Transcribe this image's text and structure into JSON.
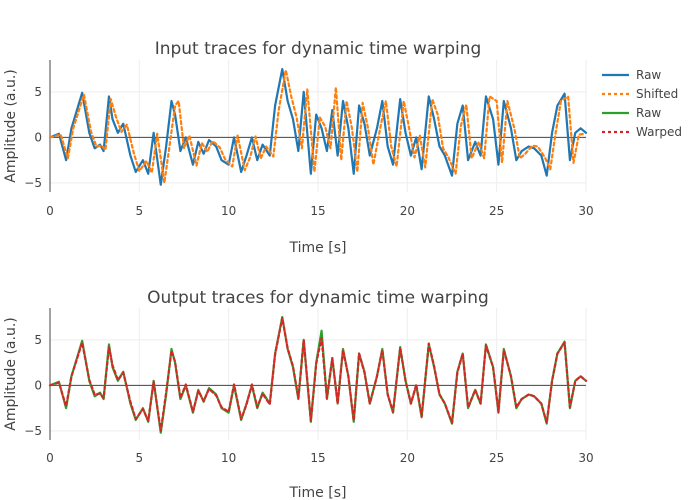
{
  "chart_data": [
    {
      "type": "line",
      "title": "Input traces for dynamic time warping",
      "xlabel": "Time [s]",
      "ylabel": "Amplitude (a.u.)",
      "xlim": [
        0,
        30
      ],
      "ylim": [
        -6,
        8.5
      ],
      "xticks": [
        "0",
        "5",
        "10",
        "15",
        "20",
        "25",
        "30"
      ],
      "yticks": [
        "−5",
        "0",
        "5"
      ],
      "grid": true,
      "legend_position": "right",
      "series": [
        {
          "name": "Raw",
          "color": "#1f77b4",
          "dash": "solid",
          "x": [
            0.0,
            0.5,
            0.9,
            1.2,
            1.8,
            2.2,
            2.5,
            2.8,
            3.0,
            3.3,
            3.5,
            3.8,
            4.1,
            4.5,
            4.8,
            5.2,
            5.5,
            5.8,
            6.2,
            6.5,
            6.8,
            7.0,
            7.3,
            7.6,
            8.0,
            8.3,
            8.6,
            8.9,
            9.3,
            9.6,
            10.0,
            10.3,
            10.7,
            11.0,
            11.3,
            11.6,
            11.9,
            12.3,
            12.6,
            13.0,
            13.3,
            13.6,
            13.9,
            14.2,
            14.6,
            14.9,
            15.2,
            15.5,
            15.8,
            16.1,
            16.4,
            16.7,
            17.0,
            17.3,
            17.6,
            17.9,
            18.3,
            18.6,
            18.9,
            19.2,
            19.6,
            19.9,
            20.2,
            20.5,
            20.8,
            21.2,
            21.5,
            21.8,
            22.1,
            22.5,
            22.8,
            23.1,
            23.4,
            23.8,
            24.1,
            24.4,
            24.8,
            25.1,
            25.4,
            25.8,
            26.1,
            26.4,
            26.8,
            27.1,
            27.5,
            27.8,
            28.1,
            28.4,
            28.8,
            29.1,
            29.4,
            29.7,
            30.0
          ],
          "y": [
            0,
            0.4,
            -2.5,
            1.0,
            4.9,
            0.5,
            -1.2,
            -0.8,
            -1.5,
            4.5,
            2.0,
            0.5,
            1.5,
            -2.0,
            -3.8,
            -2.5,
            -4.0,
            0.5,
            -5.2,
            -1.0,
            4.0,
            2.5,
            -1.5,
            0.0,
            -3.0,
            -0.5,
            -1.8,
            -0.3,
            -1.0,
            -2.5,
            -3.0,
            0.0,
            -3.8,
            -2.0,
            0.0,
            -2.5,
            -0.8,
            -2.0,
            3.5,
            7.5,
            4.0,
            2.0,
            -1.5,
            5.0,
            -4.0,
            2.5,
            1.0,
            -1.5,
            3.0,
            -2.0,
            4.0,
            1.0,
            -4.0,
            3.5,
            1.5,
            -2.0,
            1.0,
            4.0,
            -1.0,
            -3.0,
            4.2,
            0.5,
            -2.0,
            0.0,
            -3.5,
            4.5,
            2.0,
            -1.0,
            -2.0,
            -4.2,
            1.5,
            3.5,
            -2.5,
            -0.5,
            -2.0,
            4.5,
            2.0,
            -3.0,
            4.0,
            1.0,
            -2.5,
            -1.5,
            -1.0,
            -1.2,
            -2.0,
            -4.2,
            0.5,
            3.5,
            4.8,
            -2.5,
            0.5,
            1.0,
            0.5
          ]
        },
        {
          "name": "Shifted",
          "color": "#ff7f0e",
          "dash": "dot",
          "x": [
            0.0,
            0.6,
            1.0,
            1.3,
            1.9,
            2.3,
            2.6,
            2.9,
            3.1,
            3.4,
            3.7,
            4.0,
            4.3,
            4.7,
            5.0,
            5.4,
            5.7,
            6.0,
            6.4,
            6.7,
            7.0,
            7.2,
            7.5,
            7.8,
            8.2,
            8.5,
            8.8,
            9.1,
            9.5,
            9.8,
            10.2,
            10.5,
            10.9,
            11.2,
            11.5,
            11.8,
            12.1,
            12.5,
            12.8,
            13.2,
            13.5,
            13.8,
            14.1,
            14.4,
            14.8,
            15.1,
            15.4,
            15.7,
            16.0,
            16.3,
            16.6,
            16.9,
            17.2,
            17.5,
            17.8,
            18.1,
            18.5,
            18.8,
            19.1,
            19.4,
            19.8,
            20.1,
            20.4,
            20.7,
            21.0,
            21.4,
            21.7,
            22.0,
            22.3,
            22.7,
            23.0,
            23.3,
            23.6,
            24.0,
            24.3,
            24.6,
            25.0,
            25.3,
            25.6,
            26.0,
            26.3,
            26.6,
            27.0,
            27.3,
            27.7,
            28.0,
            28.3,
            28.6,
            29.0,
            29.3,
            29.6,
            29.9
          ],
          "y": [
            0,
            0.3,
            -2.3,
            1.0,
            4.7,
            0.6,
            -1.0,
            -0.9,
            -1.4,
            4.2,
            2.2,
            0.6,
            1.4,
            -1.8,
            -3.7,
            -2.6,
            -3.9,
            0.4,
            -5.0,
            -0.8,
            3.5,
            4.0,
            -1.2,
            0.2,
            -3.1,
            -0.6,
            -1.6,
            -0.4,
            -1.1,
            -2.4,
            -3.2,
            0.2,
            -3.6,
            -2.2,
            0.1,
            -2.3,
            -1.0,
            -2.1,
            3.0,
            7.4,
            4.5,
            2.2,
            -1.2,
            5.3,
            -3.8,
            2.2,
            1.2,
            -1.2,
            5.5,
            -2.5,
            4.0,
            1.0,
            -3.8,
            3.8,
            1.0,
            -3.0,
            1.2,
            4.0,
            -1.0,
            -3.2,
            4.0,
            1.0,
            -2.2,
            0.2,
            -3.3,
            4.2,
            2.5,
            -1.2,
            -2.2,
            -4.0,
            1.3,
            3.6,
            -2.3,
            -0.5,
            -2.3,
            4.5,
            4.0,
            -2.8,
            4.0,
            0.9,
            -2.3,
            -1.8,
            -0.9,
            -1.0,
            -2.2,
            -3.5,
            0.5,
            4.0,
            4.5,
            -2.8,
            0.3,
            0.4
          ]
        }
      ]
    },
    {
      "type": "line",
      "title": "Output traces for dynamic time warping",
      "xlabel": "Time [s]",
      "ylabel": "Amplitude (a.u.)",
      "xlim": [
        0,
        30
      ],
      "ylim": [
        -6,
        8.5
      ],
      "xticks": [
        "0",
        "5",
        "10",
        "15",
        "20",
        "25",
        "30"
      ],
      "yticks": [
        "−5",
        "0",
        "5"
      ],
      "grid": true,
      "legend_position": "right",
      "series": [
        {
          "name": "Raw",
          "color": "#2ca02c",
          "dash": "solid",
          "x": [
            0.0,
            0.5,
            0.9,
            1.2,
            1.8,
            2.2,
            2.5,
            2.8,
            3.0,
            3.3,
            3.5,
            3.8,
            4.1,
            4.5,
            4.8,
            5.2,
            5.5,
            5.8,
            6.2,
            6.5,
            6.8,
            7.0,
            7.3,
            7.6,
            8.0,
            8.3,
            8.6,
            8.9,
            9.3,
            9.6,
            10.0,
            10.3,
            10.7,
            11.0,
            11.3,
            11.6,
            11.9,
            12.3,
            12.6,
            13.0,
            13.3,
            13.6,
            13.9,
            14.2,
            14.6,
            14.9,
            15.2,
            15.5,
            15.8,
            16.1,
            16.4,
            16.7,
            17.0,
            17.3,
            17.6,
            17.9,
            18.3,
            18.6,
            18.9,
            19.2,
            19.6,
            19.9,
            20.2,
            20.5,
            20.8,
            21.2,
            21.5,
            21.8,
            22.1,
            22.5,
            22.8,
            23.1,
            23.4,
            23.8,
            24.1,
            24.4,
            24.8,
            25.1,
            25.4,
            25.8,
            26.1,
            26.4,
            26.8,
            27.1,
            27.5,
            27.8,
            28.1,
            28.4,
            28.8,
            29.1,
            29.4,
            29.7,
            30.0
          ],
          "y": [
            0,
            0.4,
            -2.5,
            1.0,
            4.9,
            0.5,
            -1.2,
            -0.8,
            -1.5,
            4.5,
            2.0,
            0.5,
            1.5,
            -2.0,
            -3.8,
            -2.5,
            -4.0,
            0.5,
            -5.2,
            -1.0,
            4.0,
            2.5,
            -1.5,
            0.0,
            -3.0,
            -0.5,
            -1.8,
            -0.3,
            -1.0,
            -2.5,
            -3.0,
            0.0,
            -3.8,
            -2.0,
            0.0,
            -2.5,
            -0.8,
            -2.0,
            3.5,
            7.5,
            4.0,
            2.0,
            -1.5,
            5.0,
            -4.0,
            2.5,
            6.0,
            -1.5,
            3.0,
            -2.0,
            4.0,
            1.0,
            -4.0,
            3.5,
            1.5,
            -2.0,
            1.0,
            4.0,
            -1.0,
            -3.0,
            4.2,
            0.5,
            -2.0,
            0.0,
            -3.5,
            4.5,
            2.0,
            -1.0,
            -2.0,
            -4.2,
            1.5,
            3.5,
            -2.5,
            -0.5,
            -2.0,
            4.5,
            2.0,
            -3.0,
            4.0,
            1.0,
            -2.5,
            -1.5,
            -1.0,
            -1.2,
            -2.0,
            -4.2,
            0.5,
            3.5,
            4.8,
            -2.5,
            0.5,
            1.0,
            0.5
          ]
        },
        {
          "name": "Warped",
          "color": "#d62728",
          "dash": "dot",
          "x": [
            0.0,
            0.5,
            0.9,
            1.2,
            1.8,
            2.2,
            2.5,
            2.8,
            3.0,
            3.3,
            3.5,
            3.8,
            4.1,
            4.5,
            4.8,
            5.2,
            5.5,
            5.8,
            6.2,
            6.5,
            6.8,
            7.0,
            7.3,
            7.6,
            8.0,
            8.3,
            8.6,
            8.9,
            9.3,
            9.6,
            10.0,
            10.3,
            10.7,
            11.0,
            11.3,
            11.6,
            11.9,
            12.3,
            12.6,
            13.0,
            13.3,
            13.6,
            13.9,
            14.2,
            14.6,
            14.9,
            15.2,
            15.5,
            15.8,
            16.1,
            16.4,
            16.7,
            17.0,
            17.3,
            17.6,
            17.9,
            18.3,
            18.6,
            18.9,
            19.2,
            19.6,
            19.9,
            20.2,
            20.5,
            20.8,
            21.2,
            21.5,
            21.8,
            22.1,
            22.5,
            22.8,
            23.1,
            23.4,
            23.8,
            24.1,
            24.4,
            24.8,
            25.1,
            25.4,
            25.8,
            26.1,
            26.4,
            26.8,
            27.1,
            27.5,
            27.8,
            28.1,
            28.4,
            28.8,
            29.1,
            29.4,
            29.7,
            30.0
          ],
          "y": [
            0,
            0.3,
            -2.3,
            1.0,
            4.7,
            0.6,
            -1.0,
            -0.9,
            -1.4,
            4.2,
            2.2,
            0.6,
            1.4,
            -1.8,
            -3.7,
            -2.6,
            -3.9,
            0.4,
            -5.0,
            -0.8,
            3.8,
            2.6,
            -1.4,
            0.1,
            -2.9,
            -0.6,
            -1.7,
            -0.4,
            -1.1,
            -2.4,
            -2.9,
            0.1,
            -3.7,
            -2.1,
            0.1,
            -2.4,
            -0.9,
            -2.1,
            3.4,
            7.4,
            4.1,
            2.1,
            -1.4,
            5.0,
            -3.9,
            2.4,
            5.2,
            -1.4,
            3.0,
            -2.0,
            3.9,
            1.0,
            -3.9,
            3.5,
            1.4,
            -2.0,
            1.0,
            3.9,
            -1.0,
            -2.9,
            4.1,
            0.5,
            -2.0,
            0.1,
            -3.4,
            4.6,
            2.1,
            -1.0,
            -2.0,
            -4.1,
            1.4,
            3.5,
            -2.4,
            -0.5,
            -2.0,
            4.4,
            2.0,
            -2.9,
            3.9,
            1.0,
            -2.4,
            -1.5,
            -1.0,
            -1.2,
            -2.0,
            -4.1,
            0.5,
            3.5,
            4.7,
            -2.4,
            0.5,
            1.0,
            0.5
          ]
        }
      ]
    }
  ]
}
